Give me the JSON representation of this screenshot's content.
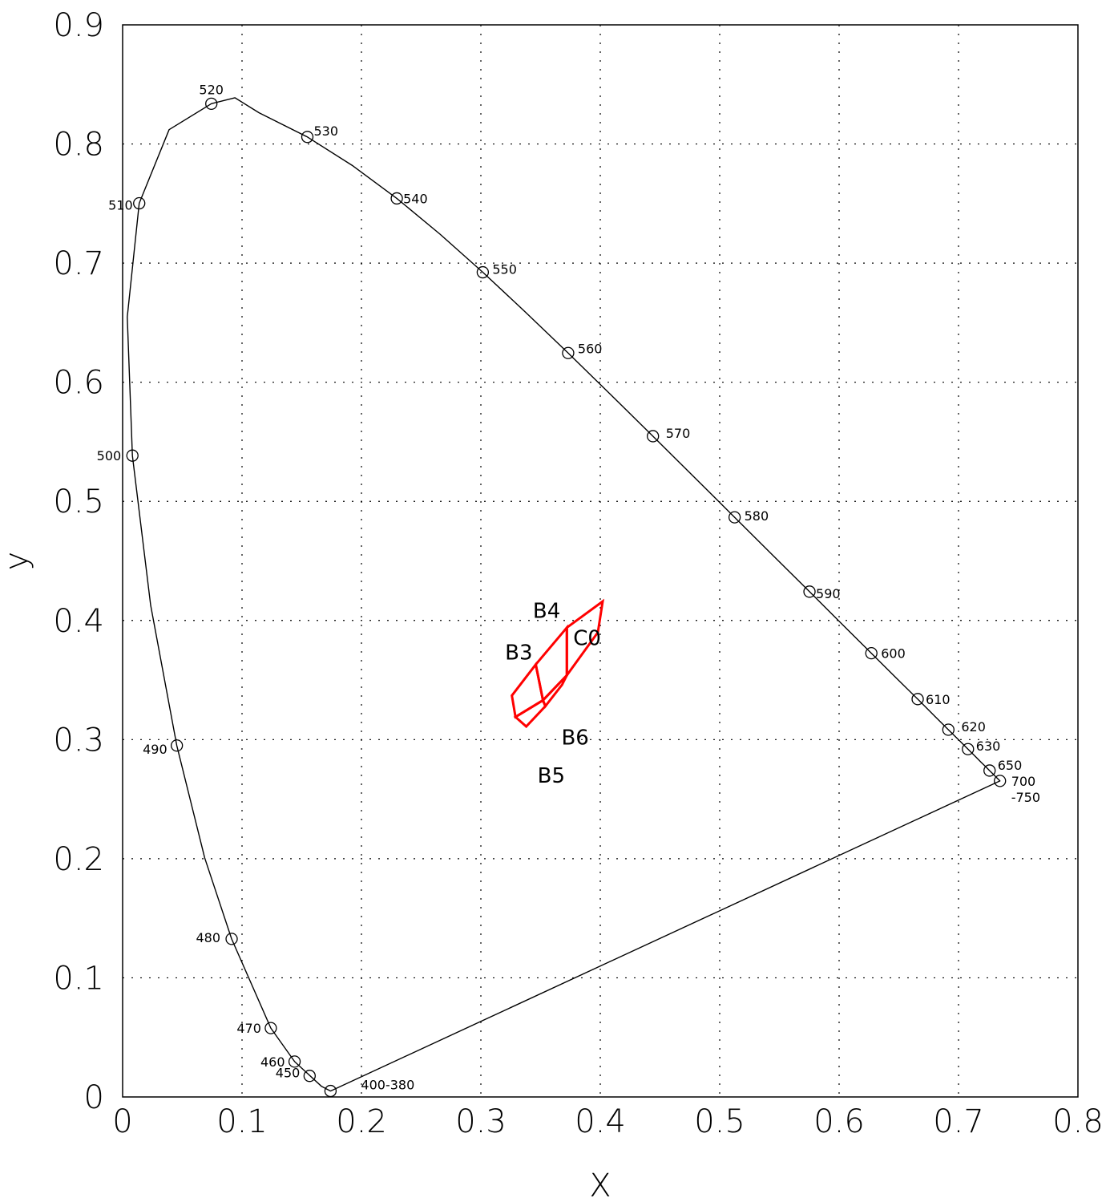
{
  "chart_data": {
    "type": "scatter",
    "title": "",
    "xlabel": "X",
    "ylabel": "y",
    "xlim": [
      0,
      0.8
    ],
    "ylim": [
      0,
      0.9
    ],
    "grid": true,
    "x_ticks": [
      "0",
      "0.1",
      "0.2",
      "0.3",
      "0.4",
      "0.5",
      "0.6",
      "0.7",
      "0.8"
    ],
    "y_ticks": [
      "0",
      "0.1",
      "0.2",
      "0.3",
      "0.4",
      "0.5",
      "0.6",
      "0.7",
      "0.8",
      "0.9"
    ],
    "colors": {
      "locus": "#000000",
      "regions": "#ff0000"
    },
    "spectral_locus": [
      [
        0.1741,
        0.005
      ],
      [
        0.1666,
        0.0089
      ],
      [
        0.144,
        0.0297
      ],
      [
        0.1241,
        0.0578
      ],
      [
        0.0913,
        0.1327
      ],
      [
        0.0687,
        0.2007
      ],
      [
        0.0454,
        0.295
      ],
      [
        0.0235,
        0.4127
      ],
      [
        0.0082,
        0.5384
      ],
      [
        0.0039,
        0.6548
      ],
      [
        0.0139,
        0.7502
      ],
      [
        0.0389,
        0.812
      ],
      [
        0.0743,
        0.8338
      ],
      [
        0.094,
        0.8388
      ],
      [
        0.1142,
        0.8262
      ],
      [
        0.1547,
        0.8059
      ],
      [
        0.1929,
        0.7816
      ],
      [
        0.2296,
        0.7543
      ],
      [
        0.2658,
        0.7243
      ],
      [
        0.3016,
        0.6923
      ],
      [
        0.3373,
        0.6589
      ],
      [
        0.3731,
        0.6245
      ],
      [
        0.4087,
        0.5896
      ],
      [
        0.4441,
        0.5547
      ],
      [
        0.4788,
        0.5202
      ],
      [
        0.5125,
        0.4866
      ],
      [
        0.5448,
        0.4544
      ],
      [
        0.5752,
        0.4242
      ],
      [
        0.6029,
        0.3965
      ],
      [
        0.627,
        0.3725
      ],
      [
        0.6482,
        0.3514
      ],
      [
        0.6658,
        0.334
      ],
      [
        0.6801,
        0.3197
      ],
      [
        0.6915,
        0.3083
      ],
      [
        0.7006,
        0.2993
      ],
      [
        0.7079,
        0.292
      ],
      [
        0.714,
        0.2859
      ],
      [
        0.719,
        0.2809
      ],
      [
        0.723,
        0.277
      ],
      [
        0.726,
        0.274
      ],
      [
        0.7283,
        0.2717
      ],
      [
        0.73,
        0.27
      ],
      [
        0.732,
        0.268
      ],
      [
        0.7347,
        0.2653
      ]
    ],
    "wavelength_points": [
      {
        "label": "400-380",
        "x": 0.1741,
        "y": 0.005
      },
      {
        "label": "450",
        "x": 0.1566,
        "y": 0.0177
      },
      {
        "label": "460",
        "x": 0.144,
        "y": 0.0297
      },
      {
        "label": "470",
        "x": 0.1241,
        "y": 0.0578
      },
      {
        "label": "480",
        "x": 0.0913,
        "y": 0.1327
      },
      {
        "label": "490",
        "x": 0.0454,
        "y": 0.295
      },
      {
        "label": "500",
        "x": 0.0082,
        "y": 0.5384
      },
      {
        "label": "510",
        "x": 0.0139,
        "y": 0.7502
      },
      {
        "label": "520",
        "x": 0.0743,
        "y": 0.8338
      },
      {
        "label": "530",
        "x": 0.1547,
        "y": 0.8059
      },
      {
        "label": "540",
        "x": 0.2296,
        "y": 0.7543
      },
      {
        "label": "550",
        "x": 0.3016,
        "y": 0.6923
      },
      {
        "label": "560",
        "x": 0.3731,
        "y": 0.6245
      },
      {
        "label": "570",
        "x": 0.4441,
        "y": 0.5547
      },
      {
        "label": "580",
        "x": 0.5125,
        "y": 0.4866
      },
      {
        "label": "590",
        "x": 0.5752,
        "y": 0.4242
      },
      {
        "label": "600",
        "x": 0.627,
        "y": 0.3725
      },
      {
        "label": "610",
        "x": 0.6658,
        "y": 0.334
      },
      {
        "label": "620",
        "x": 0.6915,
        "y": 0.3083
      },
      {
        "label": "630",
        "x": 0.7079,
        "y": 0.292
      },
      {
        "label": "650",
        "x": 0.726,
        "y": 0.274
      },
      {
        "label": "700\n-750",
        "x": 0.7347,
        "y": 0.2653
      }
    ],
    "regions": [
      {
        "label": "B3",
        "polygon": [
          [
            0.326,
            0.337
          ],
          [
            0.346,
            0.363
          ],
          [
            0.352,
            0.333
          ],
          [
            0.329,
            0.319
          ]
        ]
      },
      {
        "label": "B4",
        "polygon": [
          [
            0.346,
            0.363
          ],
          [
            0.372,
            0.394
          ],
          [
            0.372,
            0.354
          ],
          [
            0.352,
            0.333
          ]
        ]
      },
      {
        "label": "B5",
        "polygon": [
          [
            0.329,
            0.319
          ],
          [
            0.352,
            0.333
          ],
          [
            0.354,
            0.328
          ],
          [
            0.338,
            0.311
          ]
        ]
      },
      {
        "label": "B6",
        "polygon": [
          [
            0.352,
            0.333
          ],
          [
            0.372,
            0.354
          ],
          [
            0.368,
            0.346
          ],
          [
            0.354,
            0.328
          ]
        ]
      },
      {
        "label": "C0",
        "polygon": [
          [
            0.372,
            0.394
          ],
          [
            0.402,
            0.416
          ],
          [
            0.398,
            0.39
          ],
          [
            0.372,
            0.354
          ]
        ]
      }
    ]
  }
}
